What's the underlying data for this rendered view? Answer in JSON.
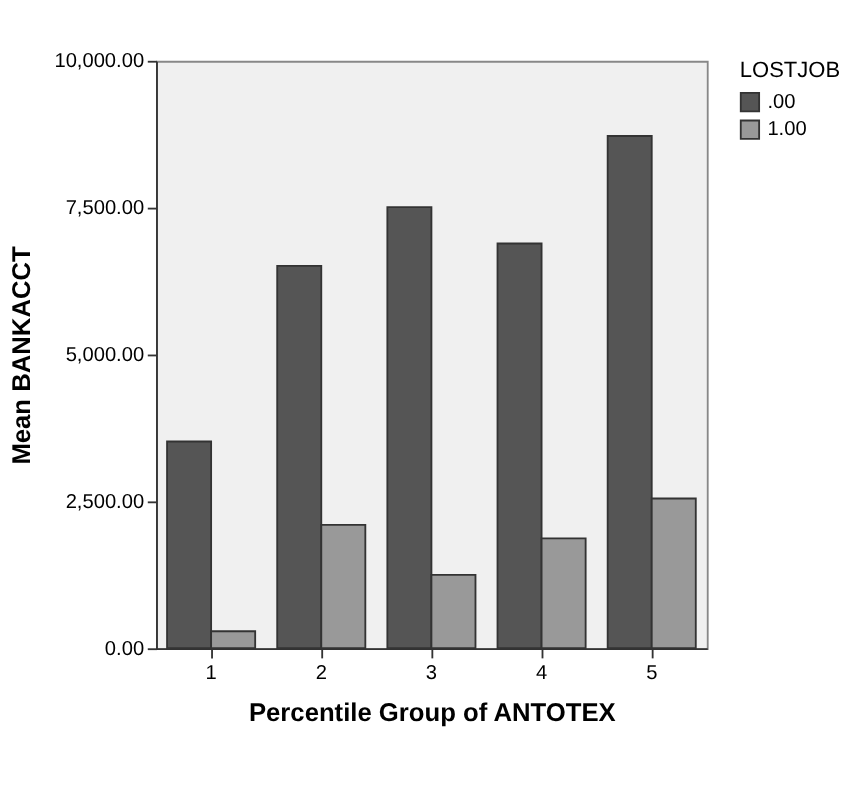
{
  "chart_data": {
    "type": "bar",
    "xlabel": "Percentile Group of ANTOTEX",
    "ylabel": "Mean BANKACCT",
    "legend_title": "LOSTJOB",
    "categories": [
      "1",
      "2",
      "3",
      "4",
      "5"
    ],
    "series": [
      {
        "name": ".00",
        "color": "#555555",
        "values": [
          3520,
          6510,
          7510,
          6890,
          8720
        ]
      },
      {
        "name": "1.00",
        "color": "#999999",
        "values": [
          290,
          2100,
          1250,
          1870,
          2550
        ]
      }
    ],
    "ylim": [
      0,
      10000
    ],
    "yticks": [
      {
        "value": 0,
        "label": "0.00"
      },
      {
        "value": 2500,
        "label": "2,500.00"
      },
      {
        "value": 5000,
        "label": "5,000.00"
      },
      {
        "value": 7500,
        "label": "7,500.00"
      },
      {
        "value": 10000,
        "label": "10,000.00"
      }
    ],
    "grid": false,
    "legend": "top right"
  }
}
